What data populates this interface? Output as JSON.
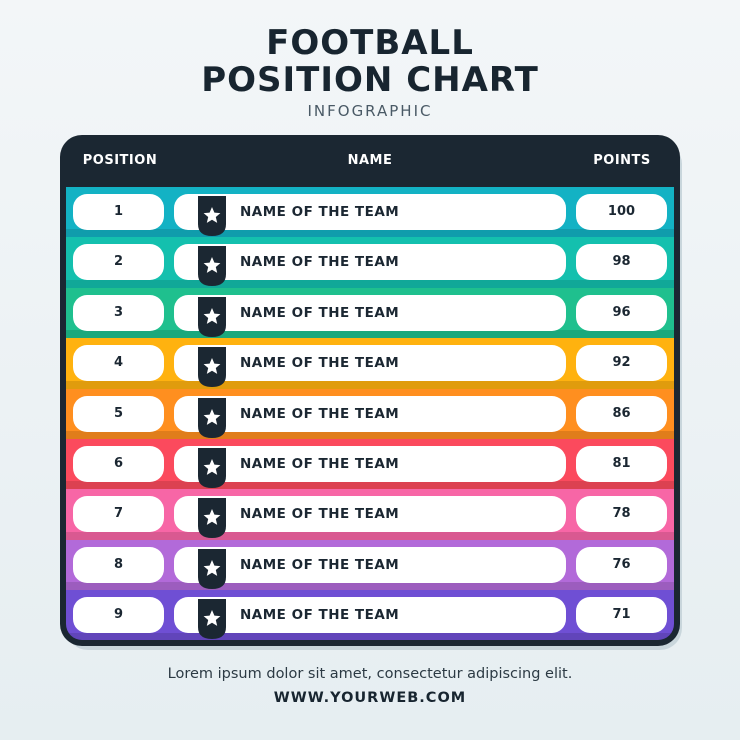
{
  "header": {
    "title_line1": "FOOTBALL",
    "title_line2": "POSITION CHART",
    "subtitle": "INFOGRAPHIC"
  },
  "table": {
    "columns": {
      "position": "POSITION",
      "name": "NAME",
      "points": "POINTS"
    },
    "badge_icon": "shield-star-icon",
    "rows": [
      {
        "position": "1",
        "name": "NAME OF THE TEAM",
        "points": "100",
        "color": "#13b2c4"
      },
      {
        "position": "2",
        "name": "NAME OF THE TEAM",
        "points": "98",
        "color": "#14c0ae"
      },
      {
        "position": "3",
        "name": "NAME OF THE TEAM",
        "points": "96",
        "color": "#1fc08e"
      },
      {
        "position": "4",
        "name": "NAME OF THE TEAM",
        "points": "92",
        "color": "#ffb20f"
      },
      {
        "position": "5",
        "name": "NAME OF THE TEAM",
        "points": "86",
        "color": "#ff8f1f"
      },
      {
        "position": "6",
        "name": "NAME OF THE TEAM",
        "points": "81",
        "color": "#fb4a5d"
      },
      {
        "position": "7",
        "name": "NAME OF THE TEAM",
        "points": "78",
        "color": "#f766a6"
      },
      {
        "position": "8",
        "name": "NAME OF THE TEAM",
        "points": "76",
        "color": "#b26ad9"
      },
      {
        "position": "9",
        "name": "NAME OF THE TEAM",
        "points": "71",
        "color": "#6f4fd4"
      }
    ]
  },
  "footer": {
    "text": "Lorem ipsum dolor sit amet, consectetur adipiscing elit.",
    "url": "WWW.YOURWEB.COM"
  }
}
